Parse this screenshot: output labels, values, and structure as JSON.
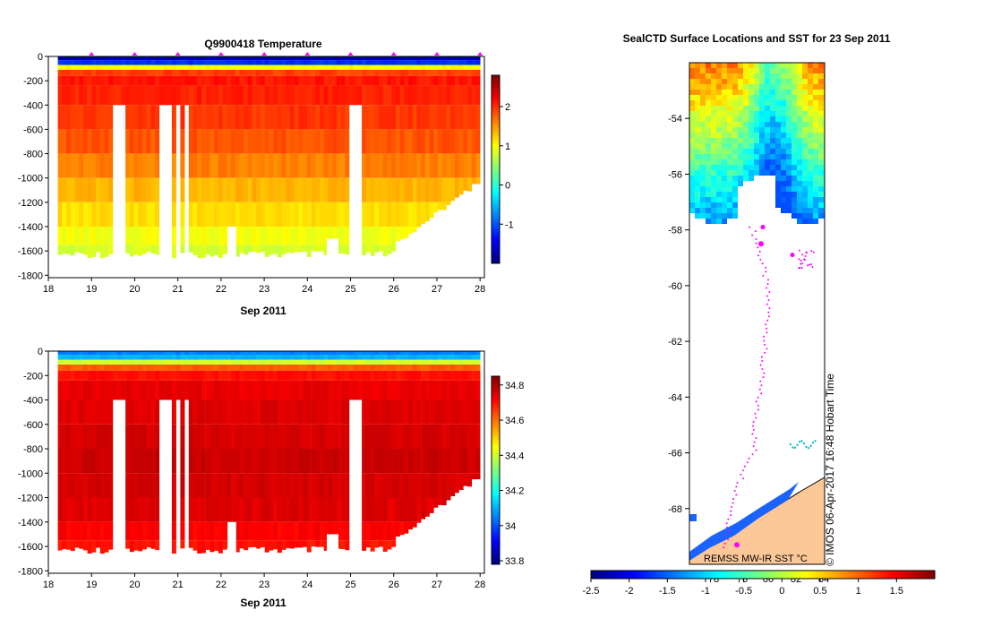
{
  "chart_data": [
    {
      "type": "heatmap",
      "id": "temperature",
      "title": "Q9900418  Temperature",
      "xlabel": "Sep 2011",
      "ylabel": "",
      "xlim": [
        18,
        28.1
      ],
      "ylim": [
        -1820,
        0
      ],
      "xticks": [
        "18",
        "19",
        "20",
        "21",
        "22",
        "23",
        "24",
        "25",
        "26",
        "27",
        "28"
      ],
      "yticks": [
        "0",
        "-200",
        "-400",
        "-600",
        "-800",
        "-1000",
        "-1200",
        "-1400",
        "-1600",
        "-1800"
      ],
      "colorbar": {
        "min": -2.0,
        "max": 2.8,
        "ticks": [
          "-1",
          "0",
          "1",
          "2"
        ]
      },
      "surface_value": -1.8,
      "deep_value": 1.0,
      "profile_markers_x": [
        19,
        20,
        21,
        22,
        23,
        24,
        25,
        26,
        27,
        28
      ]
    },
    {
      "type": "heatmap",
      "id": "salinity",
      "title": "",
      "xlabel": "Sep 2011",
      "ylabel": "",
      "xlim": [
        18,
        28.1
      ],
      "ylim": [
        -1820,
        0
      ],
      "xticks": [
        "18",
        "19",
        "20",
        "21",
        "22",
        "23",
        "24",
        "25",
        "26",
        "27",
        "28"
      ],
      "yticks": [
        "0",
        "-200",
        "-400",
        "-600",
        "-800",
        "-1000",
        "-1200",
        "-1400",
        "-1600",
        "-1800"
      ],
      "colorbar": {
        "min": 33.78,
        "max": 34.85,
        "ticks": [
          "33.8",
          "34",
          "34.2",
          "34.4",
          "34.6",
          "34.8"
        ]
      },
      "surface_value": 34.05,
      "deep_value": 34.76
    },
    {
      "type": "heatmap",
      "id": "sst_map",
      "title": "SealCTD Surface Locations and SST for 23 Sep 2011",
      "ylim": [
        -70,
        -52
      ],
      "yticks": [
        "-54",
        "-56",
        "-58",
        "-60",
        "-62",
        "-64",
        "-66",
        "-68"
      ],
      "colorbar": {
        "min": -2.5,
        "max": 2.0,
        "ticks": [
          "-2.5",
          "-2",
          "-1.5",
          "-1",
          "-0.5",
          "0",
          "0.5",
          "1",
          "1.5"
        ]
      },
      "longitude_labels": [
        "78",
        "76",
        "80",
        "82",
        "84"
      ],
      "source_label": "REMSS MW-IR SST °C",
      "credit": "© IMOS 06-Apr-2017 16:48 Hobart Time"
    }
  ]
}
